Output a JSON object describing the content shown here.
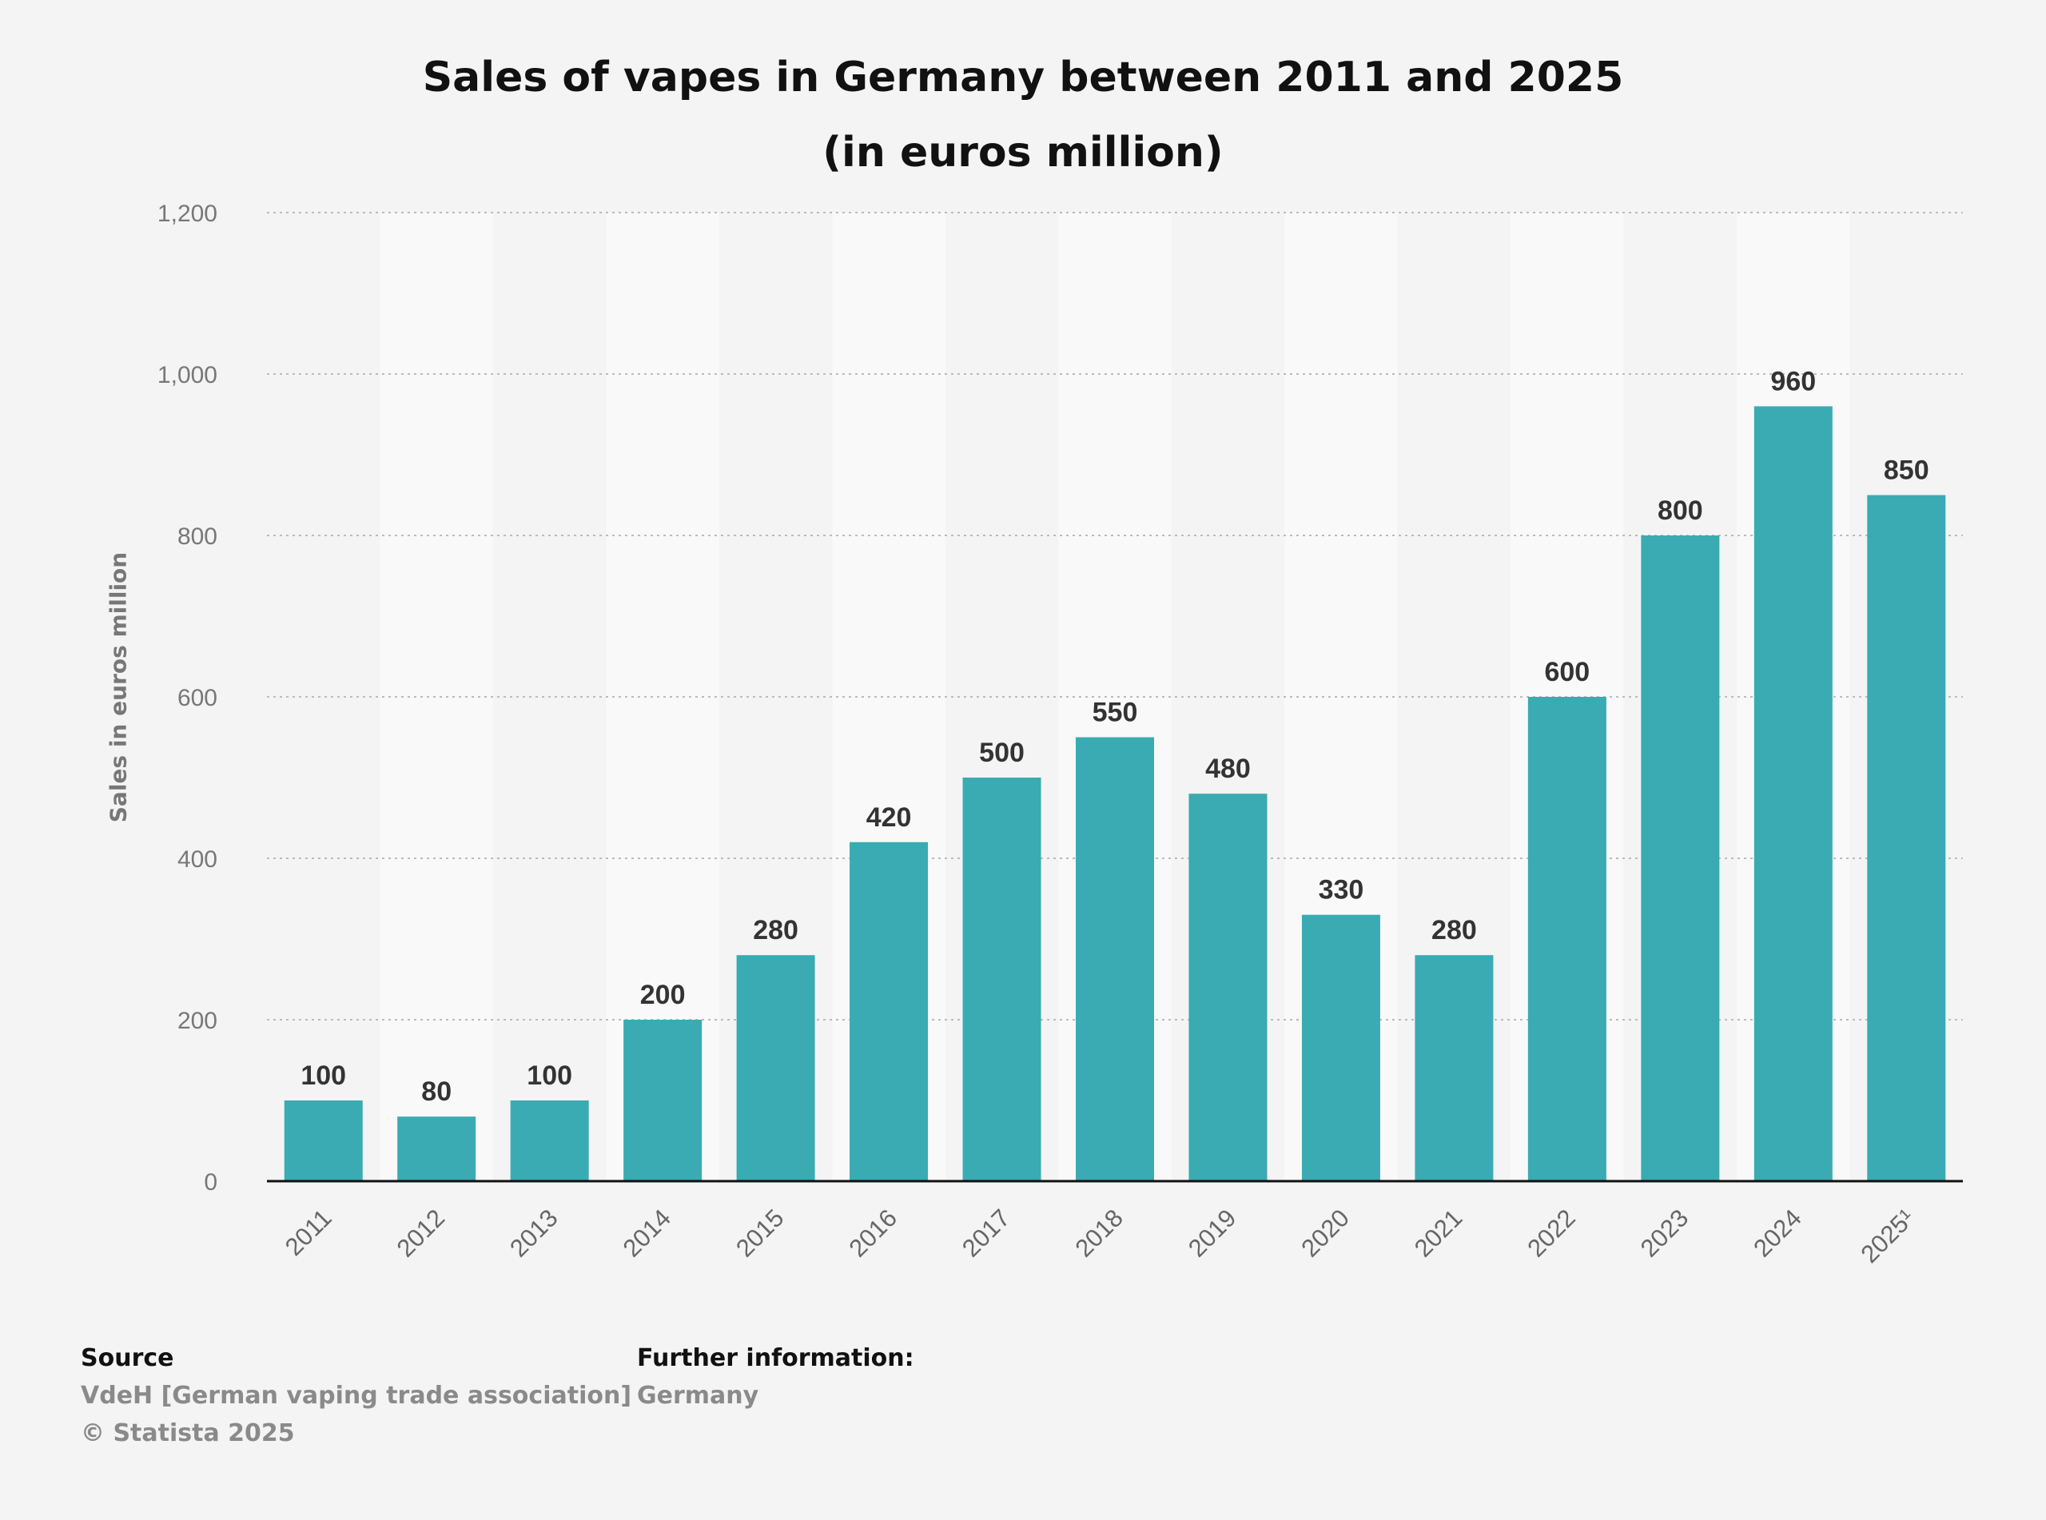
{
  "title_lines": [
    "Sales of vapes in Germany between 2011 and 2025",
    "(in euros million)"
  ],
  "chart_data": {
    "type": "bar",
    "title": "Sales of vapes in Germany between 2011 and 2025 (in euros million)",
    "xlabel": "",
    "ylabel": "Sales in euros million",
    "categories": [
      "2011",
      "2012",
      "2013",
      "2014",
      "2015",
      "2016",
      "2017",
      "2018",
      "2019",
      "2020",
      "2021",
      "2022",
      "2023",
      "2024",
      "2025¹"
    ],
    "values": [
      100,
      80,
      100,
      200,
      280,
      420,
      500,
      550,
      480,
      330,
      280,
      600,
      800,
      960,
      850
    ],
    "data_labels": [
      "100",
      "80",
      "100",
      "200",
      "280",
      "420",
      "500",
      "550",
      "480",
      "330",
      "280",
      "600",
      "800",
      "960",
      "850"
    ],
    "ylim": [
      0,
      1200
    ],
    "y_ticks": [
      0,
      200,
      400,
      600,
      800,
      1000,
      1200
    ],
    "y_tick_labels": [
      "0",
      "200",
      "400",
      "600",
      "800",
      "1,000",
      "1,200"
    ],
    "grid": true,
    "legend": "none",
    "bar_color": "#3aabb2"
  },
  "footer": {
    "source_heading": "Source",
    "source_lines": [
      "VdeH [German vaping trade association]",
      "© Statista 2025"
    ],
    "info_heading": "Further information:",
    "info_lines": [
      "Germany"
    ]
  }
}
